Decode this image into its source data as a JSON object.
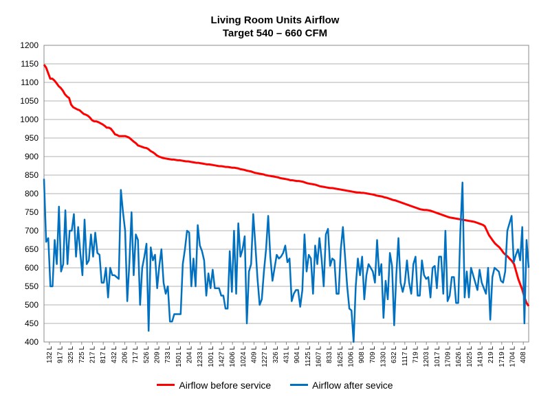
{
  "chart_data": {
    "type": "line",
    "title": "Living Room Units Airflow",
    "subtitle": "Target 540 – 660 CFM",
    "xlabel": "",
    "ylabel": "",
    "ylim": [
      400,
      1200
    ],
    "yticks": [
      400,
      450,
      500,
      550,
      600,
      650,
      700,
      750,
      800,
      850,
      900,
      950,
      1000,
      1050,
      1100,
      1150,
      1200
    ],
    "grid": true,
    "legend_position": "bottom",
    "x_tick_labels": [
      "132 L",
      "917 L",
      "325 L",
      "725 L",
      "217 L",
      "817 L",
      "432 L",
      "206 L",
      "717 L",
      "526 L",
      "209 L",
      "733 L",
      "1501 L",
      "204 L",
      "1233 L",
      "1001 L",
      "1427 L",
      "1606 L",
      "1024 L",
      "409 L",
      "1227 L",
      "326 L",
      "431 L",
      "904 L",
      "1125 L",
      "1607 L",
      "833 L",
      "1625 L",
      "1006 L",
      "908 L",
      "709 L",
      "1330 L",
      "632 L",
      "1117 L",
      "719 L",
      "1203 L",
      "1017 L",
      "1709 L",
      "1626 L",
      "1025 L",
      "1419 L",
      "219 L",
      "1719 L",
      "1704 L",
      "408 L"
    ],
    "series": [
      {
        "name": "Airflow before service",
        "color": "#ff0000",
        "values": [
          1148,
          1140,
          1125,
          1110,
          1110,
          1105,
          1098,
          1090,
          1085,
          1078,
          1068,
          1062,
          1058,
          1040,
          1033,
          1030,
          1027,
          1025,
          1020,
          1015,
          1013,
          1010,
          1005,
          998,
          995,
          995,
          993,
          990,
          987,
          983,
          978,
          978,
          975,
          968,
          960,
          958,
          955,
          955,
          955,
          955,
          953,
          950,
          945,
          940,
          936,
          930,
          928,
          926,
          924,
          923,
          920,
          915,
          912,
          908,
          903,
          900,
          898,
          896,
          895,
          894,
          893,
          892,
          892,
          891,
          890,
          890,
          889,
          888,
          887,
          887,
          886,
          885,
          884,
          883,
          883,
          882,
          881,
          880,
          879,
          879,
          878,
          877,
          876,
          875,
          874,
          874,
          873,
          872,
          872,
          871,
          870,
          870,
          869,
          868,
          866,
          865,
          864,
          862,
          861,
          860,
          858,
          856,
          855,
          854,
          853,
          852,
          850,
          849,
          848,
          847,
          846,
          845,
          844,
          842,
          841,
          840,
          839,
          838,
          836,
          836,
          835,
          834,
          834,
          833,
          832,
          830,
          828,
          827,
          826,
          825,
          824,
          822,
          820,
          819,
          818,
          817,
          816,
          815,
          815,
          814,
          813,
          812,
          811,
          810,
          809,
          808,
          807,
          806,
          805,
          804,
          803,
          803,
          802,
          802,
          801,
          800,
          799,
          798,
          797,
          795,
          794,
          793,
          792,
          790,
          789,
          787,
          785,
          783,
          782,
          780,
          778,
          776,
          774,
          772,
          770,
          768,
          766,
          764,
          762,
          760,
          758,
          757,
          756,
          756,
          755,
          754,
          752,
          750,
          748,
          746,
          744,
          742,
          740,
          738,
          736,
          735,
          734,
          733,
          732,
          731,
          730,
          729,
          728,
          727,
          726,
          725,
          724,
          722,
          720,
          718,
          716,
          712,
          700,
          688,
          680,
          672,
          665,
          660,
          655,
          648,
          640,
          635,
          630,
          624,
          618,
          610,
          590,
          570,
          555,
          540,
          520,
          505,
          497
        ]
      },
      {
        "name": "Airflow after sevice",
        "color": "#0070c0",
        "values": [
          840,
          670,
          680,
          550,
          550,
          675,
          610,
          765,
          590,
          610,
          755,
          610,
          700,
          700,
          745,
          630,
          710,
          640,
          580,
          730,
          610,
          620,
          690,
          630,
          695,
          640,
          635,
          560,
          560,
          600,
          520,
          600,
          580,
          580,
          575,
          570,
          810,
          750,
          700,
          510,
          615,
          750,
          580,
          690,
          675,
          500,
          600,
          630,
          665,
          430,
          655,
          620,
          635,
          545,
          605,
          650,
          560,
          530,
          550,
          455,
          455,
          475,
          475,
          475,
          475,
          610,
          650,
          700,
          695,
          550,
          625,
          550,
          715,
          660,
          645,
          620,
          525,
          585,
          545,
          595,
          545,
          545,
          545,
          525,
          525,
          490,
          490,
          645,
          535,
          700,
          530,
          720,
          630,
          650,
          685,
          450,
          590,
          610,
          745,
          660,
          570,
          500,
          515,
          590,
          650,
          740,
          630,
          565,
          600,
          635,
          625,
          630,
          640,
          660,
          615,
          625,
          510,
          530,
          540,
          540,
          495,
          540,
          690,
          590,
          635,
          625,
          530,
          660,
          610,
          680,
          625,
          550,
          690,
          705,
          605,
          625,
          620,
          530,
          530,
          650,
          710,
          630,
          550,
          490,
          485,
          400,
          550,
          625,
          580,
          630,
          515,
          580,
          610,
          600,
          590,
          560,
          675,
          580,
          610,
          465,
          565,
          515,
          640,
          605,
          445,
          580,
          680,
          560,
          535,
          560,
          620,
          560,
          530,
          610,
          630,
          525,
          525,
          620,
          580,
          570,
          575,
          520,
          600,
          605,
          545,
          630,
          630,
          530,
          700,
          510,
          525,
          575,
          575,
          505,
          505,
          700,
          830,
          520,
          590,
          520,
          600,
          580,
          560,
          540,
          595,
          560,
          545,
          530,
          600,
          460,
          575,
          600,
          595,
          590,
          565,
          560,
          590,
          700,
          720,
          740,
          615,
          635,
          650,
          620,
          710,
          450,
          675,
          600
        ]
      }
    ]
  }
}
